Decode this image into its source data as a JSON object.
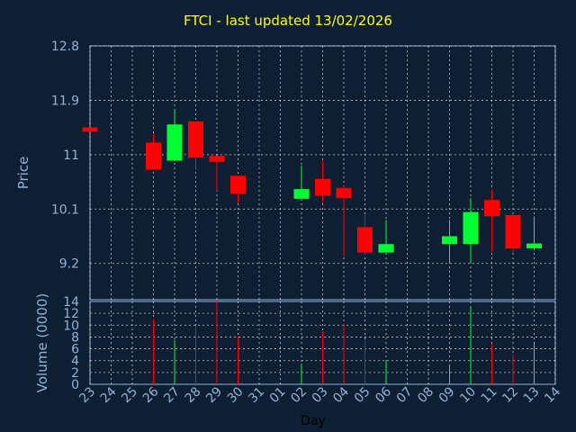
{
  "chart_data": {
    "type": "candlestick",
    "title": "FTCI - last updated 13/02/2026",
    "price_axis": {
      "label": "Price",
      "ylim": [
        8.6,
        12.8
      ],
      "ticks": [
        "9.2",
        "10.1",
        "11",
        "11.9",
        "12.8"
      ],
      "tick_values": [
        9.2,
        10.1,
        11.0,
        11.9,
        12.8
      ]
    },
    "volume_axis": {
      "label": "Volume (0000)",
      "ylim": [
        0,
        14
      ],
      "ticks": [
        "0",
        "2",
        "4",
        "6",
        "8",
        "10",
        "12",
        "14"
      ],
      "tick_values": [
        0,
        2,
        4,
        6,
        8,
        10,
        12,
        14
      ]
    },
    "x_axis": {
      "label": "Day",
      "categories": [
        "23",
        "24",
        "25",
        "26",
        "27",
        "28",
        "29",
        "30",
        "31",
        "01",
        "02",
        "03",
        "04",
        "05",
        "06",
        "07",
        "08",
        "09",
        "10",
        "11",
        "12",
        "13",
        "14"
      ]
    },
    "colors": {
      "up": "#00ff33",
      "down": "#ff0000",
      "title": "#ffff00",
      "axis_text": "#8fb3d9",
      "grid": "#ffffff",
      "background": "#0f1f33"
    },
    "series": [
      {
        "day": "23",
        "open": 11.45,
        "high": 11.45,
        "low": 11.38,
        "close": 11.38,
        "volume": 0
      },
      {
        "day": "26",
        "open": 11.2,
        "high": 11.35,
        "low": 10.75,
        "close": 10.75,
        "volume": 11
      },
      {
        "day": "27",
        "open": 10.9,
        "high": 11.75,
        "low": 10.9,
        "close": 11.5,
        "volume": 7.5
      },
      {
        "day": "28",
        "open": 11.55,
        "high": 11.55,
        "low": 10.75,
        "close": 10.95,
        "volume": 9.8
      },
      {
        "day": "29",
        "open": 10.98,
        "high": 10.98,
        "low": 10.4,
        "close": 10.88,
        "volume": 14
      },
      {
        "day": "30",
        "open": 10.65,
        "high": 10.65,
        "low": 10.2,
        "close": 10.35,
        "volume": 8
      },
      {
        "day": "02",
        "open": 10.27,
        "high": 10.82,
        "low": 10.27,
        "close": 10.43,
        "volume": 3.5
      },
      {
        "day": "03",
        "open": 10.6,
        "high": 10.9,
        "low": 10.2,
        "close": 10.32,
        "volume": 9
      },
      {
        "day": "04",
        "open": 10.45,
        "high": 10.48,
        "low": 9.32,
        "close": 10.28,
        "volume": 10.3
      },
      {
        "day": "05",
        "open": 9.8,
        "high": 10.0,
        "low": 9.35,
        "close": 9.38,
        "volume": 7.5
      },
      {
        "day": "06",
        "open": 9.38,
        "high": 9.92,
        "low": 9.38,
        "close": 9.52,
        "volume": 4
      },
      {
        "day": "09",
        "open": 9.52,
        "high": 9.92,
        "low": 9.2,
        "close": 9.65,
        "volume": 3.3
      },
      {
        "day": "10",
        "open": 9.52,
        "high": 10.28,
        "low": 9.22,
        "close": 10.05,
        "volume": 13
      },
      {
        "day": "11",
        "open": 10.25,
        "high": 10.42,
        "low": 9.4,
        "close": 9.98,
        "volume": 6.8
      },
      {
        "day": "12",
        "open": 10.0,
        "high": 10.0,
        "low": 9.38,
        "close": 9.45,
        "volume": 5
      },
      {
        "day": "13",
        "open": 9.45,
        "high": 9.98,
        "low": 9.42,
        "close": 9.53,
        "volume": 7.2
      }
    ]
  }
}
